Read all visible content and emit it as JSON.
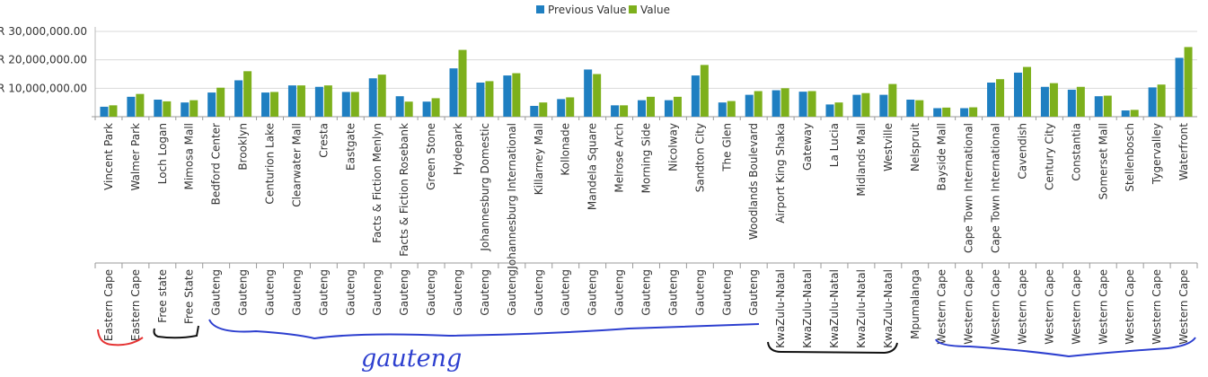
{
  "chart_data": {
    "type": "bar",
    "categories": [
      "Vincent Park",
      "Walmer Park",
      "Loch Logan",
      "Mimosa Mall",
      "Bedford Center",
      "Brooklyn",
      "Centurion Lake",
      "Clearwater Mall",
      "Cresta",
      "Eastgate",
      "Facts & Fiction Menlyn",
      "Facts & Fiction Rosebank",
      "Green Stone",
      "Hydepark",
      "Johannesburg Domestic",
      "Johannesburg International",
      "Killarney Mall",
      "Kollonade",
      "Mandela Square",
      "Melrose Arch",
      "Morning Side",
      "Nicolway",
      "Sandton City",
      "The Glen",
      "Woodlands Boulevard",
      "Airport King Shaka",
      "Gateway",
      "La Lucia",
      "Midlands Mall",
      "Westville",
      "Nelspruit",
      "Bayside Mall",
      "Cape Town International",
      "Cape Town International",
      "Cavendish",
      "Century City",
      "Constantia",
      "Somerset Mall",
      "Stellenbosch",
      "Tygervalley",
      "Waterfront"
    ],
    "groups": [
      "Eastern Cape",
      "Eastern Cape",
      "Free state",
      "Free State",
      "Gauteng",
      "Gauteng",
      "Gauteng",
      "Gauteng",
      "Gauteng",
      "Gauteng",
      "Gauteng",
      "Gauteng",
      "Gauteng",
      "Gauteng",
      "Gauteng",
      "Gauteng",
      "Gauteng",
      "Gauteng",
      "Gauteng",
      "Gauteng",
      "Gauteng",
      "Gauteng",
      "Gauteng",
      "Gauteng",
      "Gauteng",
      "KwaZulu-Natal",
      "KwaZulu-Natal",
      "KwaZulu-Natal",
      "KwaZulu-Natal",
      "KwaZulu-Natal",
      "Mpumalanga",
      "Western Cape",
      "Western Cape",
      "Western Cape",
      "Western Cape",
      "Western Cape",
      "Western Cape",
      "Western Cape",
      "Western Cape",
      "Western Cape",
      "Western Cape"
    ],
    "series": [
      {
        "name": "Previous Value",
        "color": "#1f7fc1",
        "values": [
          3500000,
          7000000,
          6000000,
          5000000,
          8500000,
          12800000,
          8500000,
          11000000,
          10500000,
          8700000,
          13500000,
          7200000,
          5300000,
          17000000,
          12000000,
          14500000,
          3800000,
          6200000,
          16600000,
          4000000,
          5800000,
          5800000,
          14500000,
          5000000,
          7700000,
          9300000,
          8800000,
          4300000,
          7700000,
          7700000,
          6000000,
          3000000,
          3000000,
          12000000,
          15500000,
          10500000,
          9500000,
          7200000,
          2200000,
          10300000,
          20700000
        ]
      },
      {
        "name": "Value",
        "color": "#7db01c",
        "values": [
          4000000,
          8000000,
          5400000,
          5800000,
          10200000,
          16000000,
          8700000,
          11000000,
          11000000,
          8700000,
          14800000,
          5300000,
          6500000,
          23500000,
          12500000,
          15300000,
          5000000,
          6800000,
          15000000,
          4000000,
          7000000,
          7000000,
          18200000,
          5500000,
          9000000,
          10000000,
          9000000,
          5000000,
          8300000,
          11500000,
          5800000,
          3200000,
          3300000,
          13200000,
          17500000,
          11800000,
          10500000,
          7400000,
          2400000,
          11300000,
          24500000
        ]
      }
    ],
    "yticks": [
      "R 10,000,000.00",
      "R 20,000,000.00",
      "R 30,000,000.00"
    ],
    "ytick_values": [
      10000000,
      20000000,
      30000000
    ],
    "ylim": [
      0,
      33000000
    ],
    "grid": true,
    "legend_position": "top-center",
    "annotation_text": "gauteng"
  }
}
